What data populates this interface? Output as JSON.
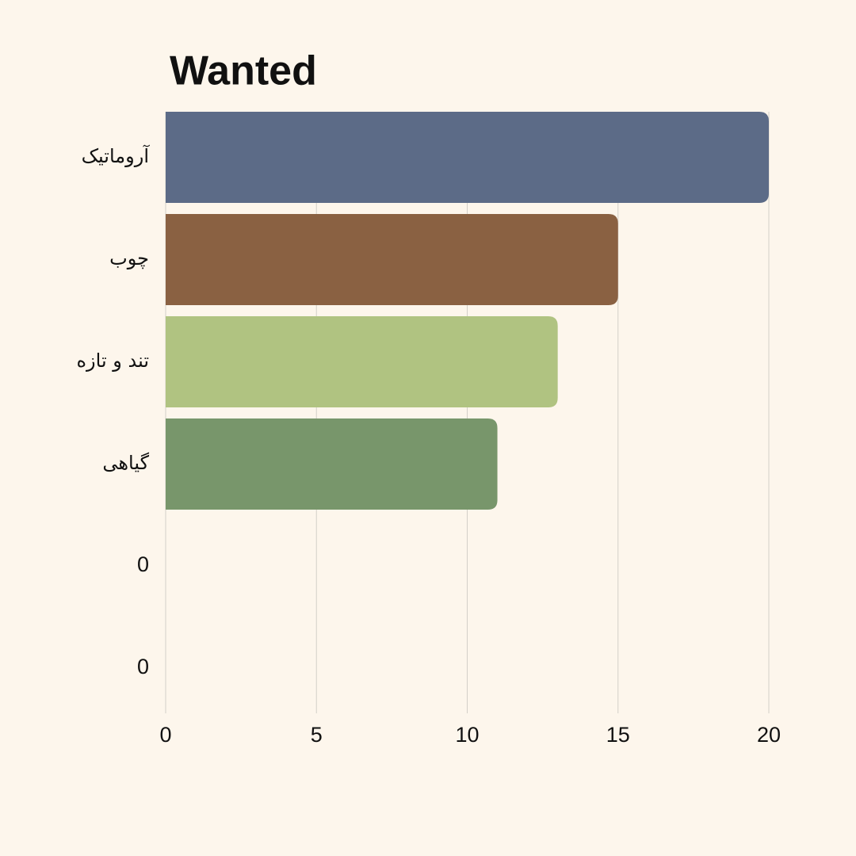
{
  "chart_data": {
    "type": "bar",
    "orientation": "horizontal",
    "title": "Wanted",
    "categories": [
      "آروماتیک",
      "چوب",
      "تند و تازه",
      "گیاهی",
      "0",
      "0"
    ],
    "values": [
      20,
      15,
      13,
      11,
      0,
      0
    ],
    "colors": [
      "#5c6b87",
      "#8a6142",
      "#b0c381",
      "#78966b"
    ],
    "xlim": [
      0,
      20
    ],
    "xticks": [
      0,
      5,
      10,
      15,
      20
    ],
    "grid": true
  }
}
